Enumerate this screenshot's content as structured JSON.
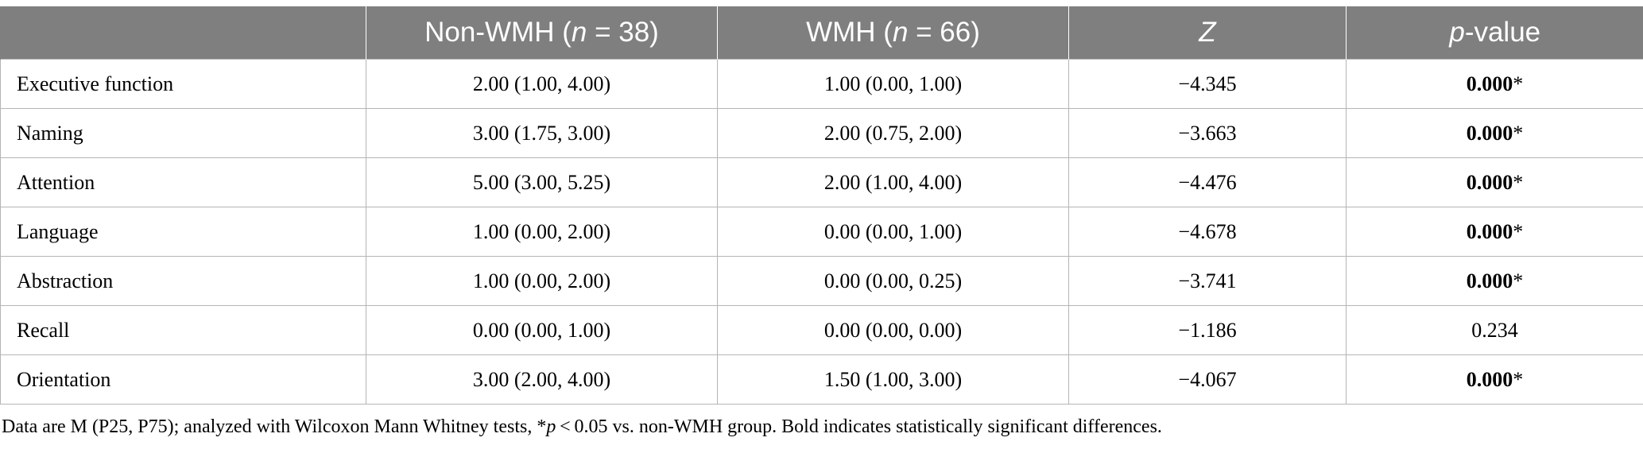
{
  "table": {
    "headers": [
      {
        "pre": "",
        "italic": "",
        "post": ""
      },
      {
        "pre": "Non-WMH (",
        "italic": "n",
        "post": " = 38)"
      },
      {
        "pre": "WMH (",
        "italic": "n",
        "post": " = 66)"
      },
      {
        "pre": "",
        "italic": "Z",
        "post": ""
      },
      {
        "pre": "",
        "italic": "p",
        "post": "-value"
      }
    ],
    "rows": [
      {
        "label": "Executive function",
        "non_wmh": "2.00 (1.00, 4.00)",
        "wmh": "1.00 (0.00, 1.00)",
        "z": "−4.345",
        "p": "0.000",
        "p_star": "*",
        "significant": true
      },
      {
        "label": "Naming",
        "non_wmh": "3.00 (1.75, 3.00)",
        "wmh": "2.00 (0.75, 2.00)",
        "z": "−3.663",
        "p": "0.000",
        "p_star": "*",
        "significant": true
      },
      {
        "label": "Attention",
        "non_wmh": "5.00 (3.00, 5.25)",
        "wmh": "2.00 (1.00, 4.00)",
        "z": "−4.476",
        "p": "0.000",
        "p_star": "*",
        "significant": true
      },
      {
        "label": "Language",
        "non_wmh": "1.00 (0.00, 2.00)",
        "wmh": "0.00 (0.00, 1.00)",
        "z": "−4.678",
        "p": "0.000",
        "p_star": "*",
        "significant": true
      },
      {
        "label": "Abstraction",
        "non_wmh": "1.00 (0.00, 2.00)",
        "wmh": "0.00 (0.00, 0.25)",
        "z": "−3.741",
        "p": "0.000",
        "p_star": "*",
        "significant": true
      },
      {
        "label": "Recall",
        "non_wmh": "0.00 (0.00, 1.00)",
        "wmh": "0.00 (0.00, 0.00)",
        "z": "−1.186",
        "p": "0.234",
        "p_star": "",
        "significant": false
      },
      {
        "label": "Orientation",
        "non_wmh": "3.00 (2.00, 4.00)",
        "wmh": "1.50 (1.00, 3.00)",
        "z": "−4.067",
        "p": "0.000",
        "p_star": "*",
        "significant": true
      }
    ]
  },
  "footnote": {
    "part1": "Data are M (P25, P75); analyzed with Wilcoxon Mann Whitney tests, *",
    "italic": "p",
    "part2": " < 0.05 vs. non-WMH group. Bold indicates statistically significant differences."
  },
  "colors": {
    "header_bg": "#7f7f7f",
    "header_text": "#ffffff",
    "grid": "#b5b5b5"
  }
}
